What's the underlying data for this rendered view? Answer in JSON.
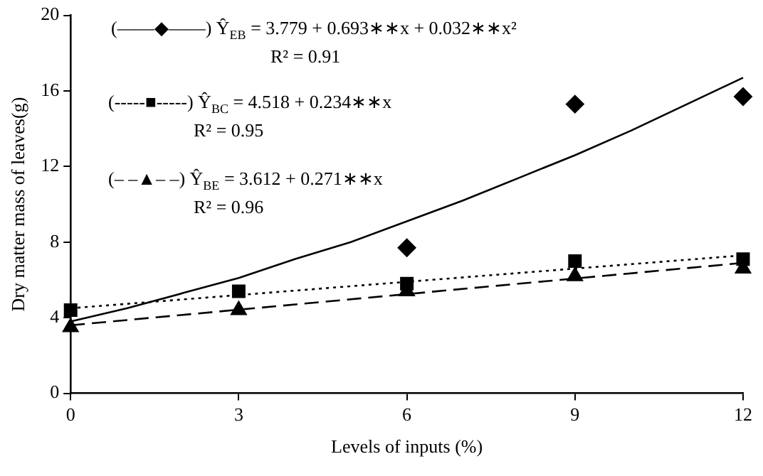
{
  "chart_data": {
    "type": "scatter",
    "xlabel": "Levels of inputs (%)",
    "ylabel": "Dry matter mass of leaves(g)",
    "xlim": [
      0,
      12
    ],
    "xticks": [
      0,
      3,
      6,
      9,
      12
    ],
    "ylim": [
      0,
      20
    ],
    "yticks": [
      0,
      4,
      8,
      12,
      16,
      20
    ],
    "grid": false,
    "legend": false,
    "series": [
      {
        "type": "scatter",
        "marker": "diamond",
        "color": "#000000",
        "x": [
          6,
          9,
          12
        ],
        "values": [
          7.7,
          15.3,
          15.7
        ]
      },
      {
        "type": "scatter",
        "marker": "square",
        "color": "#000000",
        "x": [
          0,
          3,
          6,
          9,
          12
        ],
        "values": [
          4.4,
          5.4,
          5.8,
          7.0,
          7.1
        ]
      },
      {
        "type": "scatter",
        "marker": "triangle",
        "color": "#000000",
        "x": [
          0,
          3,
          6,
          9,
          12
        ],
        "values": [
          3.5,
          4.4,
          5.4,
          6.2,
          6.6
        ]
      },
      {
        "type": "line",
        "line_style": "solid",
        "marker": "none",
        "color": "#000000",
        "x": [
          0,
          1,
          2,
          3,
          4,
          5,
          6,
          7,
          8,
          9,
          10,
          11,
          12
        ],
        "values": [
          3.8,
          4.5,
          5.3,
          6.1,
          7.1,
          8.0,
          9.1,
          10.2,
          11.4,
          12.6,
          13.9,
          15.3,
          16.7
        ]
      },
      {
        "type": "line",
        "line_style": "dotted",
        "marker": "none",
        "color": "#000000",
        "x": [
          0,
          12
        ],
        "values": [
          4.5,
          7.3
        ]
      },
      {
        "type": "line",
        "line_style": "dashed",
        "marker": "none",
        "color": "#000000",
        "x": [
          0,
          12
        ],
        "values": [
          3.6,
          6.9
        ]
      }
    ],
    "annotations": [
      "(——◆——) Ŷ$_{EB}$ = 3.779 + 0.693∗∗x + 0.032∗∗x²",
      "R² = 0.91",
      "(-----■-----) Ŷ$_{BC}$ = 4.518 + 0.234∗∗x",
      "R² = 0.95",
      "(– –▲– –) Ŷ$_{BE}$ = 3.612 + 0.271∗∗x",
      "R² = 0.96"
    ]
  }
}
